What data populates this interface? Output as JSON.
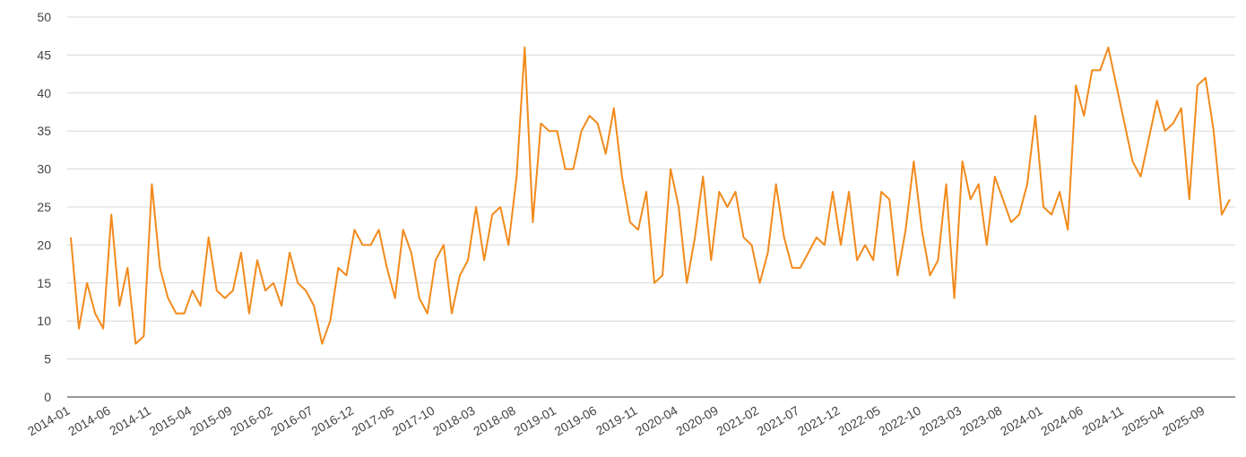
{
  "chart_data": {
    "type": "line",
    "categories": [
      "2014-01",
      null,
      null,
      null,
      null,
      "2014-06",
      null,
      null,
      null,
      null,
      "2014-11",
      null,
      null,
      null,
      null,
      "2015-04",
      null,
      null,
      null,
      null,
      "2015-09",
      null,
      null,
      null,
      null,
      "2016-02",
      null,
      null,
      null,
      null,
      "2016-07",
      null,
      null,
      null,
      null,
      "2016-12",
      null,
      null,
      null,
      null,
      "2017-05",
      null,
      null,
      null,
      null,
      "2017-10",
      null,
      null,
      null,
      null,
      "2018-03",
      null,
      null,
      null,
      null,
      "2018-08",
      null,
      null,
      null,
      null,
      "2019-01",
      null,
      null,
      null,
      null,
      "2019-06",
      null,
      null,
      null,
      null,
      "2019-11",
      null,
      null,
      null,
      null,
      "2020-04",
      null,
      null,
      null,
      null,
      "2020-09",
      null,
      null,
      null,
      null,
      "2021-02",
      null,
      null,
      null,
      null,
      "2021-07",
      null,
      null,
      null,
      null,
      "2021-12",
      null,
      null,
      null,
      null,
      "2022-05",
      null,
      null,
      null,
      null,
      "2022-10",
      null,
      null,
      null,
      null,
      "2023-03",
      null,
      null,
      null,
      null,
      "2023-08",
      null,
      null,
      null,
      null,
      "2024-01",
      null,
      null,
      null,
      null,
      "2024-06",
      null,
      null,
      null,
      null,
      "2024-11",
      null,
      null,
      null,
      null,
      "2025-04",
      null,
      null,
      null,
      null,
      "2025-09",
      null,
      null,
      null
    ],
    "values": [
      21,
      9,
      15,
      11,
      9,
      24,
      12,
      17,
      7,
      8,
      28,
      17,
      13,
      11,
      11,
      14,
      12,
      21,
      14,
      13,
      14,
      19,
      11,
      18,
      14,
      15,
      12,
      19,
      15,
      14,
      12,
      7,
      10,
      17,
      16,
      22,
      20,
      20,
      22,
      17,
      13,
      22,
      19,
      13,
      11,
      18,
      20,
      11,
      16,
      18,
      25,
      18,
      24,
      25,
      20,
      29,
      46,
      23,
      36,
      35,
      35,
      30,
      30,
      35,
      37,
      36,
      32,
      38,
      29,
      23,
      22,
      27,
      15,
      16,
      30,
      25,
      15,
      21,
      29,
      18,
      27,
      25,
      27,
      21,
      20,
      15,
      19,
      28,
      21,
      17,
      17,
      19,
      21,
      20,
      27,
      20,
      27,
      18,
      20,
      18,
      27,
      26,
      16,
      22,
      31,
      22,
      16,
      18,
      28,
      13,
      31,
      26,
      28,
      20,
      29,
      26,
      23,
      24,
      28,
      37,
      25,
      24,
      27,
      22,
      41,
      37,
      43,
      43,
      46,
      41,
      36,
      31,
      29,
      34,
      39,
      35,
      36,
      38,
      26,
      41,
      42,
      35,
      24,
      26
    ],
    "color": "#f28a1c",
    "ylim": [
      0,
      50
    ],
    "yticks": [
      0,
      5,
      10,
      15,
      20,
      25,
      30,
      35,
      40,
      45,
      50
    ],
    "grid": true
  }
}
